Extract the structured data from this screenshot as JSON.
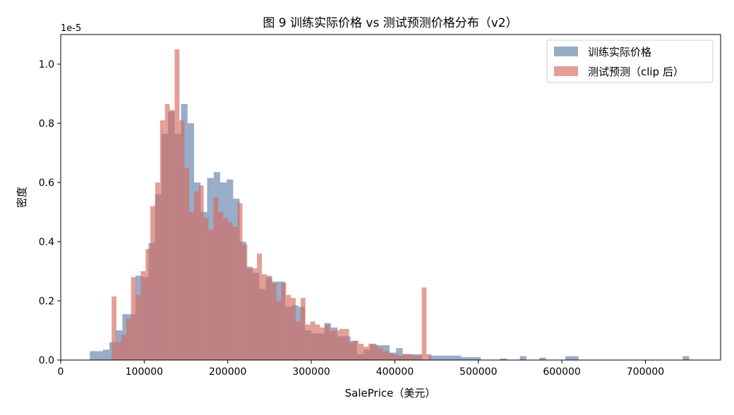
{
  "chart_data": {
    "type": "histogram",
    "title": "图 9  训练实际价格 vs 测试预测价格分布（v2）",
    "xlabel": "SalePrice（美元）",
    "ylabel": "密度",
    "y_offset_label": "1e-5",
    "x_range": [
      0,
      790000
    ],
    "y_range": [
      0,
      1.1
    ],
    "y_scale_factor": 1e-05,
    "x_ticks": [
      0,
      100000,
      200000,
      300000,
      400000,
      500000,
      600000,
      700000
    ],
    "x_tick_labels": [
      "0",
      "100000",
      "200000",
      "300000",
      "400000",
      "500000",
      "600000",
      "700000"
    ],
    "y_ticks": [
      0.0,
      0.2,
      0.4,
      0.6,
      0.8,
      1.0
    ],
    "y_tick_labels": [
      "0.0",
      "0.2",
      "0.4",
      "0.6",
      "0.8",
      "1.0"
    ],
    "grid": false,
    "legend_position": "top-right",
    "series": [
      {
        "name": "训练实际价格",
        "color": "#4c72a0",
        "opacity": 0.58,
        "bins": [
          [
            34900,
            0.03
          ],
          [
            42700,
            0.03
          ],
          [
            50500,
            0.035
          ],
          [
            58300,
            0.06
          ],
          [
            66100,
            0.1
          ],
          [
            73900,
            0.155
          ],
          [
            81700,
            0.155
          ],
          [
            89500,
            0.285
          ],
          [
            97300,
            0.28
          ],
          [
            105100,
            0.395
          ],
          [
            112900,
            0.56
          ],
          [
            120700,
            0.765
          ],
          [
            128500,
            0.84
          ],
          [
            136300,
            0.765
          ],
          [
            144100,
            0.865
          ],
          [
            151900,
            0.8
          ],
          [
            159700,
            0.6
          ],
          [
            167500,
            0.5
          ],
          [
            175300,
            0.615
          ],
          [
            183100,
            0.635
          ],
          [
            190900,
            0.6
          ],
          [
            198700,
            0.61
          ],
          [
            206500,
            0.545
          ],
          [
            214300,
            0.4
          ],
          [
            222100,
            0.315
          ],
          [
            229900,
            0.295
          ],
          [
            237700,
            0.24
          ],
          [
            245500,
            0.28
          ],
          [
            253300,
            0.265
          ],
          [
            261100,
            0.265
          ],
          [
            268900,
            0.18
          ],
          [
            276700,
            0.185
          ],
          [
            284500,
            0.18
          ],
          [
            292300,
            0.1
          ],
          [
            300100,
            0.09
          ],
          [
            307900,
            0.09
          ],
          [
            315700,
            0.125
          ],
          [
            323500,
            0.11
          ],
          [
            331300,
            0.08
          ],
          [
            339100,
            0.08
          ],
          [
            346900,
            0.065
          ],
          [
            354700,
            0.02
          ],
          [
            362500,
            0.035
          ],
          [
            370300,
            0.055
          ],
          [
            378100,
            0.05
          ],
          [
            385900,
            0.05
          ],
          [
            393700,
            0.025
          ],
          [
            401500,
            0.04
          ],
          [
            409300,
            0.02
          ],
          [
            417100,
            0.02
          ],
          [
            424900,
            0.02
          ],
          [
            440500,
            0.015
          ],
          [
            448300,
            0.015
          ],
          [
            456100,
            0.015
          ],
          [
            463900,
            0.015
          ],
          [
            471700,
            0.015
          ],
          [
            479500,
            0.01
          ],
          [
            487300,
            0.01
          ],
          [
            495100,
            0.01
          ],
          [
            526300,
            0.005
          ],
          [
            549700,
            0.013
          ],
          [
            573100,
            0.008
          ],
          [
            604300,
            0.013
          ],
          [
            612100,
            0.013
          ],
          [
            744700,
            0.013
          ]
        ],
        "bin_width": 7800
      },
      {
        "name": "测试预测（clip 后）",
        "color": "#d46a60",
        "opacity": 0.65,
        "bins": [
          [
            61000,
            0.215
          ],
          [
            66800,
            0.06
          ],
          [
            72600,
            0.085
          ],
          [
            78400,
            0.14
          ],
          [
            84200,
            0.28
          ],
          [
            90000,
            0.22
          ],
          [
            95800,
            0.3
          ],
          [
            101600,
            0.375
          ],
          [
            107400,
            0.52
          ],
          [
            113200,
            0.6
          ],
          [
            119000,
            0.81
          ],
          [
            124800,
            0.865
          ],
          [
            130600,
            0.845
          ],
          [
            136400,
            1.05
          ],
          [
            142200,
            0.81
          ],
          [
            148000,
            0.65
          ],
          [
            153800,
            0.5
          ],
          [
            159600,
            0.57
          ],
          [
            165400,
            0.59
          ],
          [
            171200,
            0.48
          ],
          [
            177000,
            0.44
          ],
          [
            182800,
            0.55
          ],
          [
            188600,
            0.5
          ],
          [
            194400,
            0.48
          ],
          [
            200200,
            0.465
          ],
          [
            206000,
            0.45
          ],
          [
            211800,
            0.53
          ],
          [
            217600,
            0.39
          ],
          [
            223400,
            0.31
          ],
          [
            229200,
            0.31
          ],
          [
            235000,
            0.36
          ],
          [
            240800,
            0.29
          ],
          [
            246600,
            0.285
          ],
          [
            252400,
            0.26
          ],
          [
            258200,
            0.2
          ],
          [
            264000,
            0.26
          ],
          [
            269800,
            0.22
          ],
          [
            275600,
            0.21
          ],
          [
            281400,
            0.13
          ],
          [
            287200,
            0.21
          ],
          [
            293000,
            0.12
          ],
          [
            298800,
            0.13
          ],
          [
            304600,
            0.12
          ],
          [
            310400,
            0.11
          ],
          [
            316200,
            0.12
          ],
          [
            322000,
            0.1
          ],
          [
            327800,
            0.1
          ],
          [
            333600,
            0.105
          ],
          [
            339400,
            0.105
          ],
          [
            345200,
            0.06
          ],
          [
            351000,
            0.065
          ],
          [
            356800,
            0.055
          ],
          [
            362600,
            0.045
          ],
          [
            368400,
            0.055
          ],
          [
            374200,
            0.05
          ],
          [
            380000,
            0.04
          ],
          [
            385800,
            0.03
          ],
          [
            391600,
            0.025
          ],
          [
            397400,
            0.02
          ],
          [
            403200,
            0.015
          ],
          [
            409000,
            0.02
          ],
          [
            414800,
            0.02
          ],
          [
            420600,
            0.015
          ],
          [
            426400,
            0.015
          ],
          [
            432200,
            0.245
          ],
          [
            438000,
            0.02
          ]
        ],
        "bin_width": 5800
      }
    ]
  }
}
